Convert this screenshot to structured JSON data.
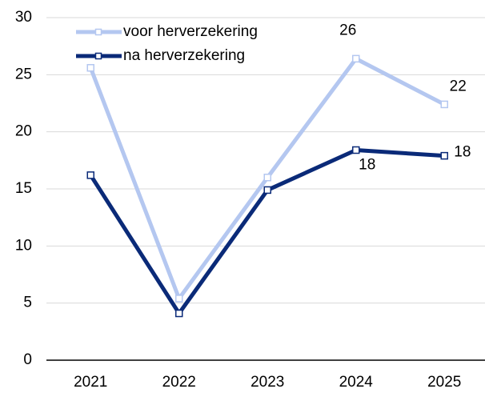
{
  "chart_data": {
    "type": "line",
    "categories": [
      "2021",
      "2022",
      "2023",
      "2024",
      "2025"
    ],
    "series": [
      {
        "name": "voor herverzekering",
        "color": "#b4c7f0",
        "values": [
          25.6,
          5.4,
          16.0,
          26.4,
          22.4
        ],
        "value_labels": [
          null,
          null,
          null,
          "26",
          "22"
        ]
      },
      {
        "name": "na herverzekering",
        "color": "#0a2a78",
        "values": [
          16.2,
          4.1,
          14.9,
          18.4,
          17.9
        ],
        "value_labels": [
          null,
          null,
          null,
          "18",
          "18"
        ]
      }
    ],
    "ylim": [
      0,
      30
    ],
    "yticks": [
      0,
      5,
      10,
      15,
      20,
      25,
      30
    ],
    "grid": true,
    "legend": "top-left"
  }
}
